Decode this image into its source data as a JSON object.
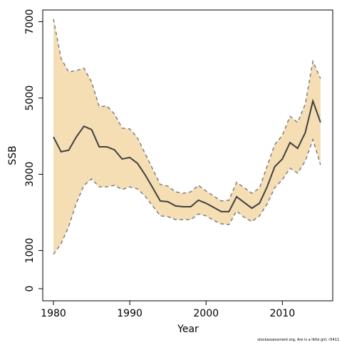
{
  "chart_data": {
    "type": "line",
    "xlabel": "Year",
    "ylabel": "SSB",
    "note": "stockassessment.org, Are is a little girl, r5411",
    "x": [
      1980,
      1981,
      1982,
      1983,
      1984,
      1985,
      1986,
      1987,
      1988,
      1989,
      1990,
      1991,
      1992,
      1993,
      1994,
      1995,
      1996,
      1997,
      1998,
      1999,
      2000,
      2001,
      2002,
      2003,
      2004,
      2005,
      2006,
      2007,
      2008,
      2009,
      2010,
      2011,
      2012,
      2013,
      2014,
      2015
    ],
    "values": [
      3980,
      3590,
      3630,
      3980,
      4260,
      4170,
      3720,
      3720,
      3640,
      3400,
      3440,
      3290,
      2990,
      2650,
      2300,
      2280,
      2170,
      2150,
      2150,
      2320,
      2240,
      2130,
      2020,
      2020,
      2410,
      2260,
      2110,
      2240,
      2670,
      3200,
      3400,
      3830,
      3680,
      4090,
      4920,
      4360
    ],
    "upper": [
      7070,
      6040,
      5680,
      5720,
      5780,
      5420,
      4770,
      4790,
      4580,
      4210,
      4190,
      3960,
      3550,
      3140,
      2730,
      2690,
      2540,
      2500,
      2540,
      2710,
      2560,
      2430,
      2300,
      2320,
      2790,
      2650,
      2500,
      2640,
      3210,
      3780,
      4020,
      4520,
      4360,
      4840,
      5960,
      5510
    ],
    "lower": [
      900,
      1180,
      1630,
      2240,
      2710,
      2880,
      2670,
      2670,
      2710,
      2600,
      2670,
      2620,
      2430,
      2170,
      1910,
      1890,
      1810,
      1810,
      1810,
      1960,
      1910,
      1790,
      1700,
      1680,
      2040,
      1870,
      1760,
      1910,
      2220,
      2650,
      2860,
      3160,
      3030,
      3350,
      3910,
      3250
    ],
    "color": "#404040",
    "band_color": "#f5deb3",
    "bound_color": "#7f7f7f",
    "xlim": [
      1978.6,
      2016.6
    ],
    "ylim": [
      -318,
      7308
    ],
    "xticks": [
      1980,
      1990,
      2000,
      2010
    ],
    "yticks": [
      0,
      1000,
      3000,
      5000,
      7000
    ]
  }
}
